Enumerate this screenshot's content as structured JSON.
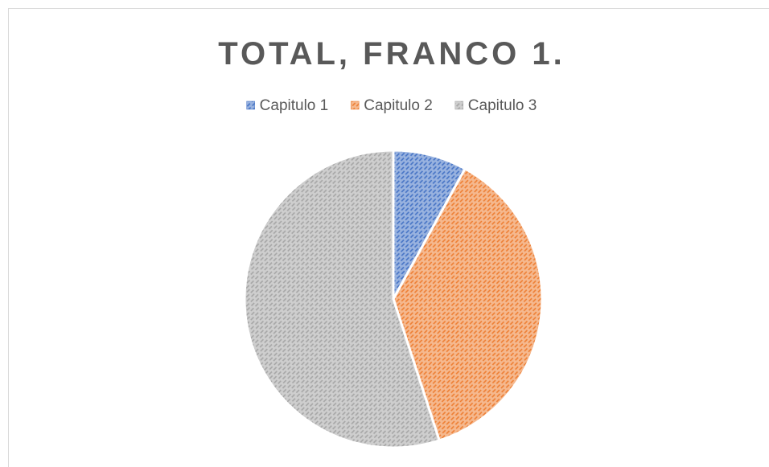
{
  "chart_data": {
    "type": "pie",
    "title": "TOTAL, FRANCO 1.",
    "categories": [
      "Capitulo 1",
      "Capitulo 2",
      "Capitulo 3"
    ],
    "values": [
      8,
      37,
      55
    ],
    "colors": [
      "#4472c4",
      "#ed7d31",
      "#a5a5a5"
    ],
    "legend": "top"
  }
}
